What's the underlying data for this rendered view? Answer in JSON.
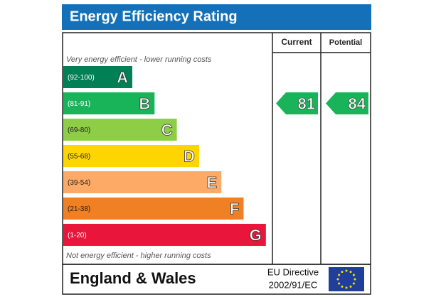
{
  "header": {
    "title": "Energy Efficiency Rating"
  },
  "columns": [
    "Current",
    "Potential"
  ],
  "top_note": "Very energy efficient - lower running costs",
  "bottom_note": "Not energy efficient - higher running costs",
  "bands": [
    {
      "range": "(92-100)",
      "letter": "A",
      "color": "#008054"
    },
    {
      "range": "(81-91)",
      "letter": "B",
      "color": "#19b459"
    },
    {
      "range": "(69-80)",
      "letter": "C",
      "color": "#8dce46"
    },
    {
      "range": "(55-68)",
      "letter": "D",
      "color": "#ffd500"
    },
    {
      "range": "(39-54)",
      "letter": "E",
      "color": "#fcaa65"
    },
    {
      "range": "(21-38)",
      "letter": "F",
      "color": "#ef8023"
    },
    {
      "range": "(1-20)",
      "letter": "G",
      "color": "#e9153b"
    }
  ],
  "ratings": [
    {
      "value": 81
    },
    {
      "value": 84
    }
  ],
  "footer": {
    "region": "England & Wales",
    "directive": [
      "EU Directive",
      "2002/91/EC"
    ]
  }
}
